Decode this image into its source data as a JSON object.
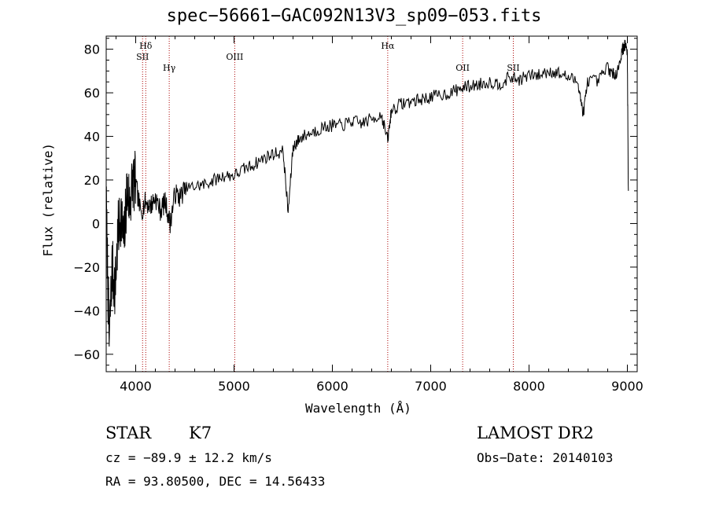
{
  "footer": {
    "object_class": "STAR",
    "subclass": "K7",
    "survey": "LAMOST DR2",
    "cz_text": "cz = −89.9 ± 12.2 km/s",
    "obs_date_text": "Obs−Date: 20140103",
    "coords_text": "RA =  93.80500, DEC =  14.56433"
  },
  "chart_data": {
    "type": "line",
    "title": "spec−56661−GAC092N13V3_sp09−053.fits",
    "xlabel": "Wavelength (Å)",
    "ylabel": "Flux (relative)",
    "xlim": [
      3700,
      9100
    ],
    "ylim": [
      -68,
      86
    ],
    "x_ticks": [
      4000,
      5000,
      6000,
      7000,
      8000,
      9000
    ],
    "x_tick_labels": [
      "4000",
      "5000",
      "6000",
      "7000",
      "8000",
      "9000"
    ],
    "y_ticks": [
      -60,
      -40,
      -20,
      0,
      20,
      40,
      60,
      80
    ],
    "y_tick_labels": [
      "−60",
      "−40",
      "−20",
      "0",
      "20",
      "40",
      "60",
      "80"
    ],
    "grid": false,
    "line_color": "#000000",
    "marker_color": "#aa0000",
    "lines": [
      {
        "label": "Hδ",
        "x": 4102
      },
      {
        "label": "SII",
        "x": 4070
      },
      {
        "label": "Hγ",
        "x": 4341
      },
      {
        "label": "OIII",
        "x": 5007
      },
      {
        "label": "Hα",
        "x": 6563
      },
      {
        "label": "OII",
        "x": 7325
      },
      {
        "label": "SII",
        "x": 7840
      }
    ],
    "series": [
      {
        "x": [
          3700,
          3730,
          3760,
          3790,
          3820,
          3850,
          3880,
          3910,
          3940,
          3970,
          4000,
          4050,
          4100,
          4150,
          4200,
          4250,
          4300,
          4350,
          4400,
          4450,
          4500,
          4600,
          4700,
          4800,
          4900,
          5000,
          5100,
          5200,
          5300,
          5400,
          5500,
          5550,
          5600,
          5650,
          5700,
          5800,
          5900,
          6000,
          6100,
          6200,
          6300,
          6400,
          6500,
          6563,
          6600,
          6700,
          6800,
          6900,
          7000,
          7100,
          7200,
          7300,
          7400,
          7500,
          7600,
          7700,
          7800,
          7900,
          8000,
          8100,
          8200,
          8300,
          8400,
          8500,
          8550,
          8600,
          8700,
          8800,
          8850,
          8900,
          8950,
          8980,
          9000,
          9010
        ],
        "y": [
          10,
          -55,
          -20,
          -30,
          -5,
          5,
          -10,
          15,
          10,
          20,
          18,
          5,
          10,
          8,
          12,
          6,
          10,
          0,
          14,
          12,
          16,
          17,
          18,
          20,
          22,
          22,
          25,
          27,
          30,
          32,
          33,
          5,
          35,
          38,
          40,
          42,
          44,
          45,
          45,
          47,
          46,
          48,
          50,
          38,
          52,
          55,
          56,
          57,
          58,
          59,
          60,
          62,
          63,
          64,
          65,
          64,
          67,
          66,
          68,
          68,
          70,
          69,
          67,
          65,
          50,
          66,
          65,
          72,
          68,
          70,
          80,
          82,
          78,
          15
        ]
      }
    ]
  }
}
